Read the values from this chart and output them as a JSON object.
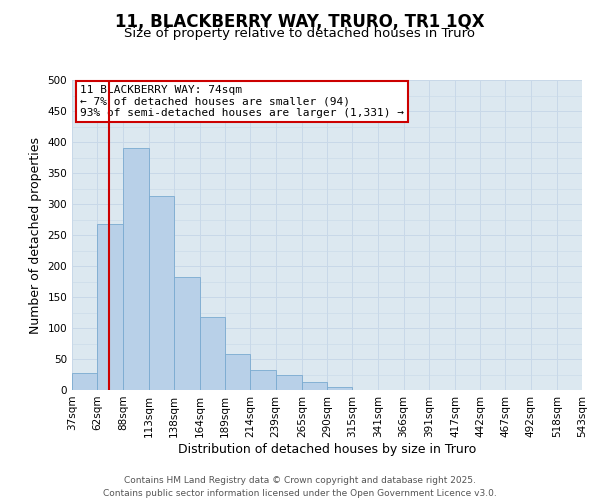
{
  "title": "11, BLACKBERRY WAY, TRURO, TR1 1QX",
  "subtitle": "Size of property relative to detached houses in Truro",
  "xlabel": "Distribution of detached houses by size in Truro",
  "ylabel": "Number of detached properties",
  "bin_edges": [
    37,
    62,
    88,
    113,
    138,
    164,
    189,
    214,
    239,
    265,
    290,
    315,
    341,
    366,
    391,
    417,
    442,
    467,
    492,
    518,
    543
  ],
  "bar_heights": [
    28,
    268,
    390,
    313,
    183,
    118,
    58,
    32,
    25,
    13,
    5,
    0,
    0,
    0,
    0,
    0,
    0,
    0,
    0,
    0
  ],
  "bar_color": "#b8d0e8",
  "bar_edge_color": "#7aaad0",
  "red_line_x": 74,
  "annotation_title": "11 BLACKBERRY WAY: 74sqm",
  "annotation_line1": "← 7% of detached houses are smaller (94)",
  "annotation_line2": "93% of semi-detached houses are larger (1,331) →",
  "annotation_box_color": "#ffffff",
  "annotation_border_color": "#cc0000",
  "red_line_color": "#cc0000",
  "ylim": [
    0,
    500
  ],
  "yticks": [
    0,
    50,
    100,
    150,
    200,
    250,
    300,
    350,
    400,
    450,
    500
  ],
  "grid_color": "#c8d8e8",
  "background_color": "#dce8f0",
  "footer_line1": "Contains HM Land Registry data © Crown copyright and database right 2025.",
  "footer_line2": "Contains public sector information licensed under the Open Government Licence v3.0.",
  "title_fontsize": 12,
  "subtitle_fontsize": 9.5,
  "axis_label_fontsize": 9,
  "tick_label_fontsize": 7.5,
  "annotation_fontsize": 8,
  "footer_fontsize": 6.5
}
